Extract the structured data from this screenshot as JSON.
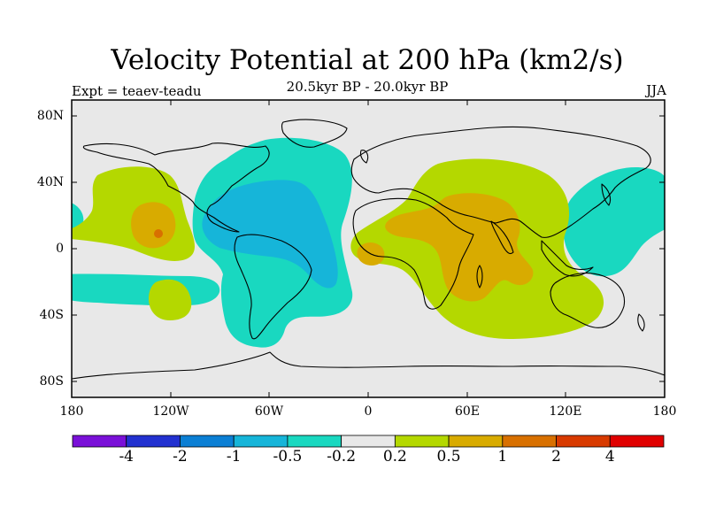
{
  "title": "Velocity Potential at 200 hPa (km2/s)",
  "subtitle": "20.5kyr BP - 20.0kyr BP",
  "experiment": "Expt = teaev-teadu",
  "season": "JJA",
  "axes": {
    "lat_labels": [
      "80N",
      "40N",
      "0",
      "40S",
      "80S"
    ],
    "lat_values": [
      80,
      40,
      0,
      -40,
      -80
    ],
    "lon_labels": [
      "180",
      "120W",
      "60W",
      "0",
      "60E",
      "120E",
      "180"
    ],
    "lon_values": [
      -180,
      -120,
      -60,
      0,
      60,
      120,
      180
    ]
  },
  "colorbar": {
    "labels": [
      "-4",
      "-2",
      "-1",
      "-0.5",
      "-0.2",
      "0.2",
      "0.5",
      "1",
      "2",
      "4"
    ],
    "colors": [
      "#7a10d8",
      "#2231d0",
      "#0b7fd4",
      "#16b5d9",
      "#19d8c0",
      "#e8e8e8",
      "#b4d800",
      "#d8ab00",
      "#d87000",
      "#d83a00",
      "#e00000"
    ]
  },
  "colors": {
    "neutral": "#e8e8e8",
    "neg_weak": "#19d8c0",
    "neg_med": "#16b5d9",
    "pos_weak": "#b4d800",
    "pos_med": "#d8ab00",
    "pos_strong": "#d87000"
  }
}
